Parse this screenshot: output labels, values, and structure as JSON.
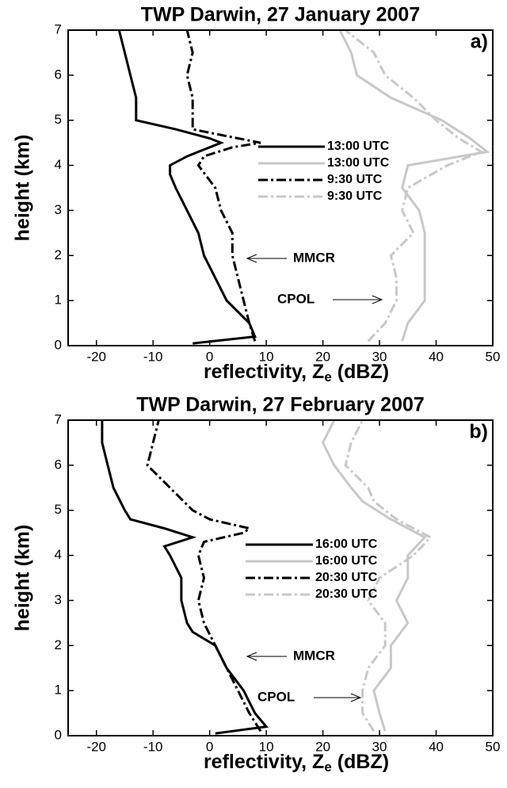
{
  "chart_data": [
    {
      "type": "line",
      "title": "TWP Darwin, 27 January 2007",
      "panel_label": "a)",
      "xlabel": {
        "text": "reflectivity, Z",
        "sub": "e",
        "unit": "(dBZ)"
      },
      "ylabel": "height (km)",
      "xlim": [
        -25,
        50
      ],
      "ylim": [
        0,
        7
      ],
      "xticks": [
        -20,
        -10,
        0,
        10,
        20,
        30,
        40,
        50
      ],
      "yticks": [
        0,
        1,
        2,
        3,
        4,
        5,
        6,
        7
      ],
      "series": [
        {
          "name": "13:00 UTC",
          "color": "#000000",
          "dash": "solid",
          "x": [
            -3,
            8,
            7,
            3,
            1,
            -1,
            -2,
            -4,
            -6,
            -7,
            -7,
            -4,
            0,
            2,
            0,
            -6,
            -13,
            -13,
            -14,
            -15,
            -16
          ],
          "y": [
            0.05,
            0.2,
            0.5,
            1.0,
            1.5,
            2.0,
            2.5,
            3.0,
            3.5,
            3.8,
            4.0,
            4.2,
            4.4,
            4.5,
            4.6,
            4.8,
            5.0,
            5.5,
            6.0,
            6.5,
            7.0
          ]
        },
        {
          "name": "13:00 UTC",
          "color": "#c8c8c8",
          "dash": "solid",
          "x": [
            34,
            35,
            38,
            38,
            38,
            38,
            37,
            34,
            35,
            49,
            46,
            41,
            32,
            26,
            25,
            23
          ],
          "y": [
            0.1,
            0.5,
            1.0,
            1.5,
            2.0,
            2.5,
            3.0,
            3.5,
            4.0,
            4.3,
            4.6,
            5.0,
            5.5,
            6.0,
            6.5,
            7.0
          ]
        },
        {
          "name": "9:30 UTC",
          "color": "#000000",
          "dash": "dashdot",
          "x": [
            8,
            7,
            6,
            5,
            4,
            4,
            2,
            1,
            -2,
            -1,
            4,
            9,
            5,
            -3,
            -3,
            -3,
            -4,
            -3,
            -4
          ],
          "y": [
            0.1,
            0.5,
            1.0,
            1.5,
            2.0,
            2.5,
            3.0,
            3.5,
            4.0,
            4.2,
            4.4,
            4.5,
            4.6,
            4.8,
            5.0,
            5.5,
            6.0,
            6.5,
            7.0
          ]
        },
        {
          "name": "9:30 UTC",
          "color": "#c8c8c8",
          "dash": "dashdot",
          "x": [
            28,
            31,
            33,
            33,
            32,
            36,
            34,
            35,
            42,
            48,
            44,
            40,
            36,
            31,
            29,
            24
          ],
          "y": [
            0.1,
            0.5,
            1.0,
            1.5,
            2.0,
            2.5,
            3.0,
            3.5,
            4.0,
            4.3,
            4.6,
            5.0,
            5.5,
            6.0,
            6.5,
            7.0
          ]
        }
      ],
      "annotations": [
        {
          "text": "MMCR"
        },
        {
          "text": "CPOL"
        }
      ]
    },
    {
      "type": "line",
      "title": "TWP Darwin, 27 February 2007",
      "panel_label": "b)",
      "xlabel": {
        "text": "reflectivity, Z",
        "sub": "e",
        "unit": "(dBZ)"
      },
      "ylabel": "height (km)",
      "xlim": [
        -25,
        50
      ],
      "ylim": [
        0,
        7
      ],
      "xticks": [
        -20,
        -10,
        0,
        10,
        20,
        30,
        40,
        50
      ],
      "yticks": [
        0,
        1,
        2,
        3,
        4,
        5,
        6,
        7
      ],
      "series": [
        {
          "name": "16:00 UTC",
          "color": "#000000",
          "dash": "solid",
          "x": [
            1,
            10,
            8,
            6,
            3,
            1,
            -3,
            -4,
            -5,
            -5,
            -7,
            -8,
            -3,
            -8,
            -14,
            -15,
            -17,
            -18,
            -19,
            -19
          ],
          "y": [
            0.05,
            0.2,
            0.5,
            1.0,
            1.5,
            2.0,
            2.3,
            2.5,
            3.0,
            3.5,
            4.0,
            4.2,
            4.4,
            4.6,
            4.8,
            5.0,
            5.5,
            6.0,
            6.5,
            7.0
          ]
        },
        {
          "name": "16:00 UTC",
          "color": "#c8c8c8",
          "dash": "solid",
          "x": [
            31,
            30,
            29,
            32,
            32,
            35,
            33,
            35,
            35,
            38,
            32,
            27,
            25,
            22,
            20,
            22
          ],
          "y": [
            0.1,
            0.5,
            1.0,
            1.5,
            2.0,
            2.5,
            3.0,
            3.5,
            4.0,
            4.4,
            4.8,
            5.2,
            5.5,
            6.0,
            6.5,
            7.0
          ]
        },
        {
          "name": "20:30 UTC",
          "color": "#000000",
          "dash": "dashdot",
          "x": [
            9,
            7,
            5,
            3,
            1,
            -1,
            -2,
            -1,
            -2,
            -1,
            6,
            7,
            0,
            -3,
            -7,
            -11,
            -10,
            -9
          ],
          "y": [
            0.1,
            0.5,
            1.0,
            1.5,
            2.0,
            2.5,
            3.0,
            3.5,
            4.0,
            4.3,
            4.5,
            4.6,
            4.8,
            5.0,
            5.5,
            6.0,
            6.5,
            7.0
          ]
        },
        {
          "name": "20:30 UTC",
          "color": "#c8c8c8",
          "dash": "dashdot",
          "x": [
            29,
            27,
            27,
            28,
            31,
            31,
            28,
            30,
            36,
            39,
            33,
            29,
            28,
            24,
            25,
            27
          ],
          "y": [
            0.1,
            0.5,
            1.0,
            1.5,
            2.0,
            2.5,
            3.0,
            3.5,
            4.0,
            4.4,
            4.8,
            5.2,
            5.5,
            6.0,
            6.5,
            7.0
          ]
        }
      ],
      "annotations": [
        {
          "text": "MMCR"
        },
        {
          "text": "CPOL"
        }
      ]
    }
  ]
}
